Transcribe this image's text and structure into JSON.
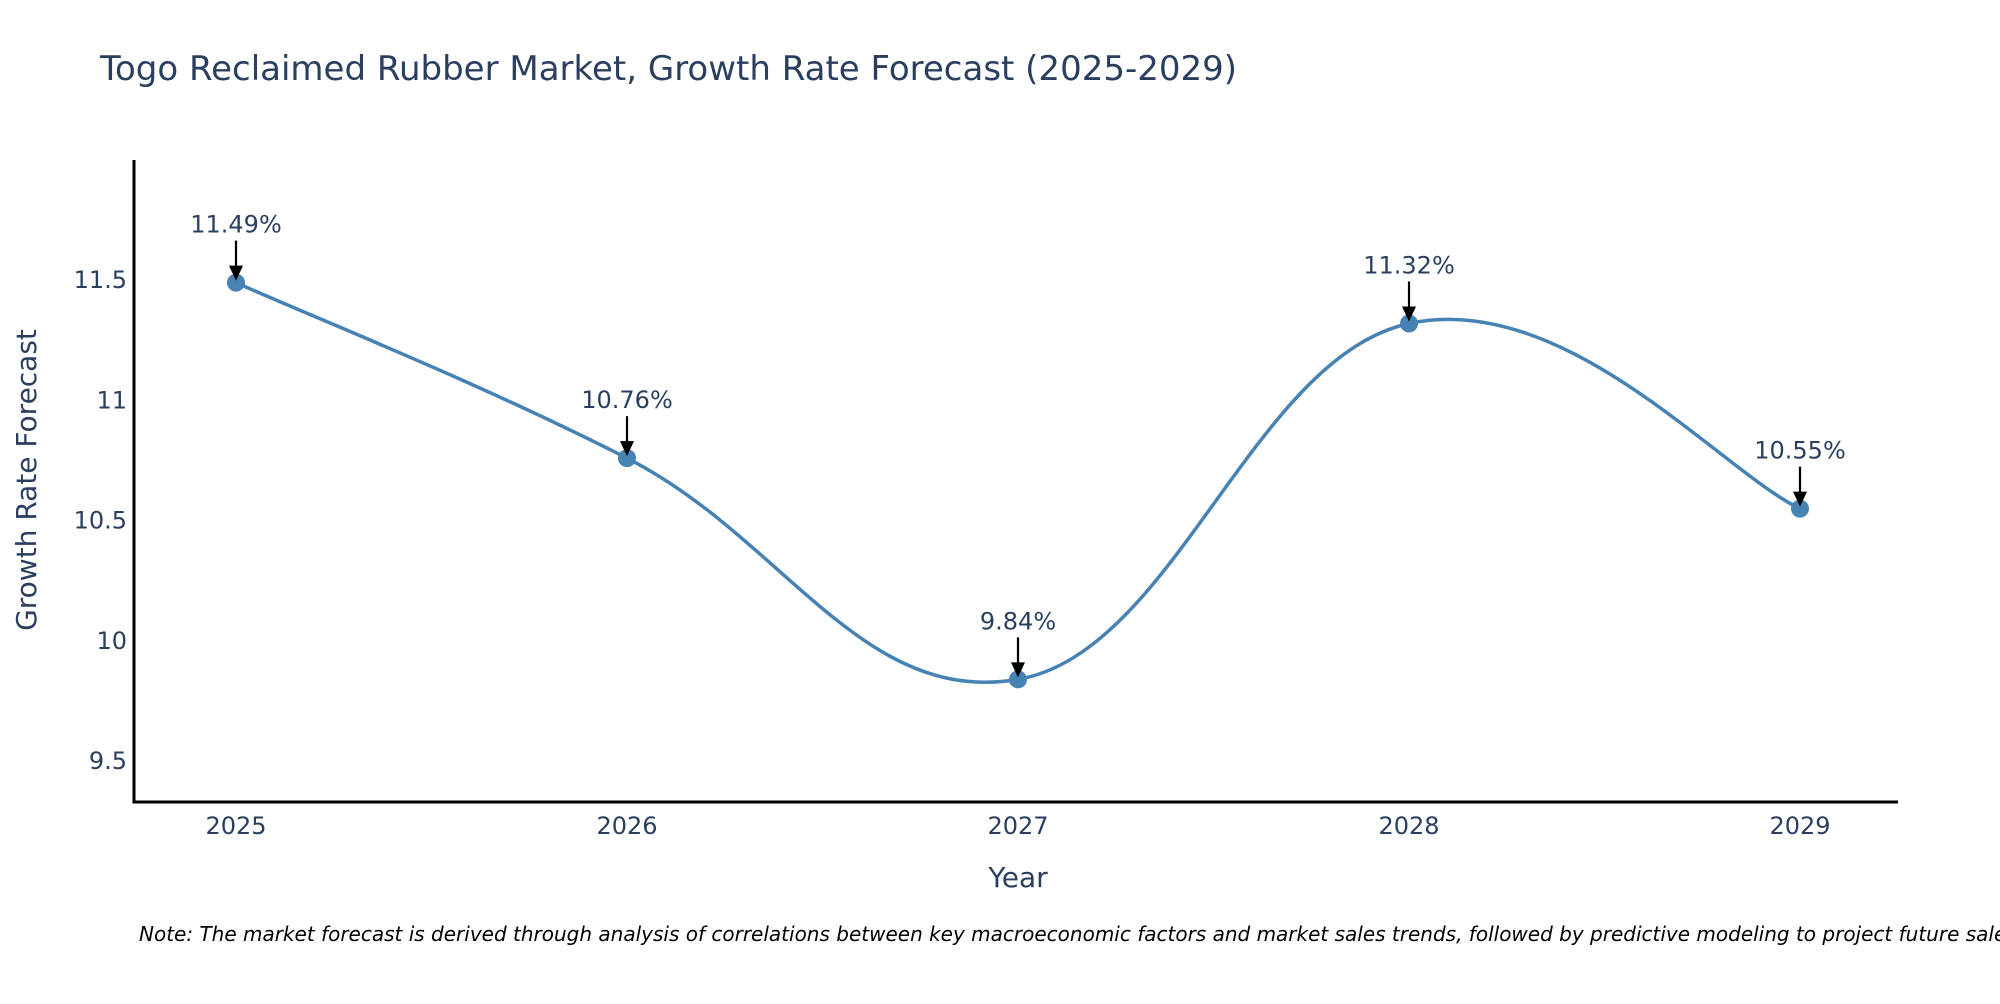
{
  "chart_data": {
    "type": "line",
    "title": "Togo Reclaimed Rubber Market, Growth Rate Forecast (2025-2029)",
    "xlabel": "Year",
    "ylabel": "Growth Rate Forecast",
    "categories": [
      "2025",
      "2026",
      "2027",
      "2028",
      "2029"
    ],
    "series": [
      {
        "name": "Growth Rate Forecast",
        "values": [
          11.49,
          10.76,
          9.84,
          11.32,
          10.55
        ],
        "labels": [
          "11.49%",
          "10.76%",
          "9.84%",
          "11.32%",
          "10.55%"
        ]
      }
    ],
    "ylim": [
      9.33,
      12.0
    ],
    "yticks": [
      9.5,
      10,
      10.5,
      11,
      11.5
    ],
    "ytick_labels": [
      "9.5",
      "10",
      "10.5",
      "11",
      "11.5"
    ],
    "grid": false,
    "legend": "none",
    "line_shape": "spline"
  },
  "note": "Note: The market forecast is derived through analysis of correlations between key macroeconomic factors and market sales trends, followed by predictive modeling to project future sales.",
  "colors": {
    "line": "#4682B4",
    "marker": "#4682B4",
    "text": "#2a3f5f",
    "axis": "#000000",
    "arrow": "#000000"
  }
}
